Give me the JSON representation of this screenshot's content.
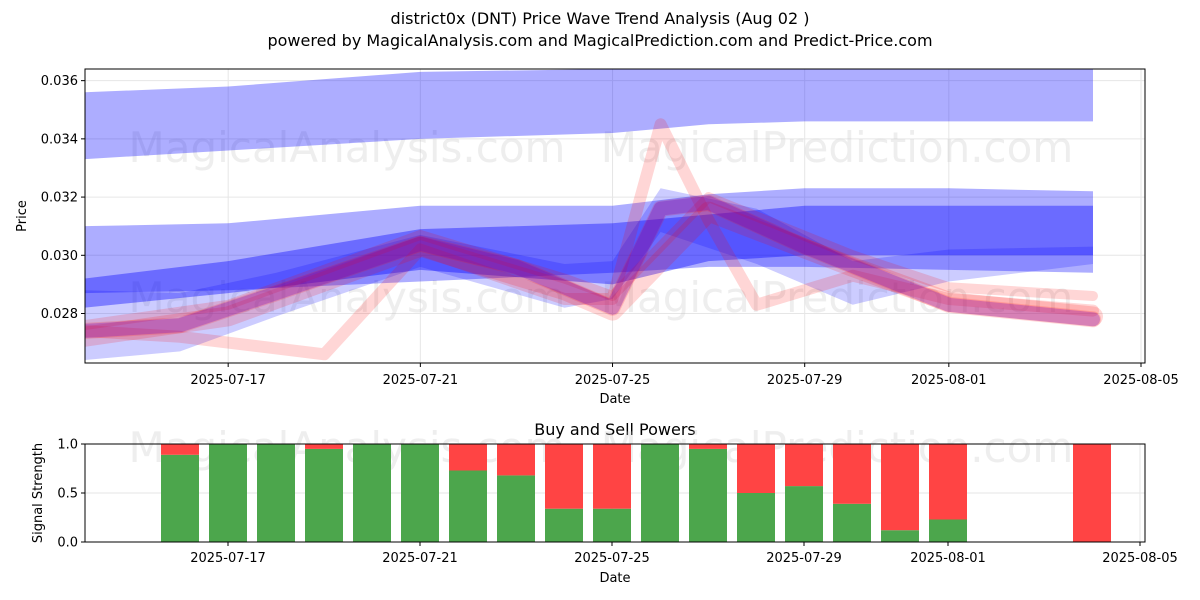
{
  "title": "district0x (DNT) Price Wave Trend Analysis (Aug 02 )",
  "subtitle": "powered by MagicalAnalysis.com and MagicalPrediction.com and Predict-Price.com",
  "watermarks": [
    "MagicalAnalysis.com",
    "MagicalPrediction.com"
  ],
  "colors": {
    "blue_band": "#0000ff",
    "red_band": "#ff0000",
    "purple_band": "#7000c0",
    "buy": "#4ca64c",
    "sell": "#ff4444"
  },
  "chart_data": [
    {
      "type": "area",
      "xlabel": "Date",
      "ylabel": "Price",
      "x_ticks": [
        "2025-07-17",
        "2025-07-21",
        "2025-07-25",
        "2025-07-29",
        "2025-08-01",
        "2025-08-05"
      ],
      "y_ticks": [
        "0.028",
        "0.030",
        "0.032",
        "0.034",
        "0.036"
      ],
      "xlim": [
        "2025-07-13",
        "2025-08-05"
      ],
      "ylim": [
        0.0263,
        0.0364
      ],
      "grid": true,
      "bands": [
        {
          "color": "blue",
          "x": [
            "2025-07-14",
            "2025-07-17",
            "2025-07-21",
            "2025-07-25",
            "2025-07-27",
            "2025-07-29",
            "2025-08-01",
            "2025-08-04"
          ],
          "low": [
            0.0333,
            0.0336,
            0.034,
            0.0342,
            0.0345,
            0.0346,
            0.0346,
            0.0346
          ],
          "high": [
            0.0356,
            0.0358,
            0.0363,
            0.0364,
            0.0364,
            0.0364,
            0.0364,
            0.0364
          ]
        },
        {
          "color": "blue",
          "x": [
            "2025-07-14",
            "2025-07-17",
            "2025-07-21",
            "2025-07-25",
            "2025-07-27",
            "2025-07-29",
            "2025-08-01",
            "2025-08-04"
          ],
          "low": [
            0.0287,
            0.0288,
            0.0291,
            0.0294,
            0.0296,
            0.0296,
            0.0295,
            0.0294
          ],
          "high": [
            0.031,
            0.0311,
            0.0317,
            0.0317,
            0.0321,
            0.0323,
            0.0323,
            0.0322
          ]
        },
        {
          "color": "blue",
          "x": [
            "2025-07-14",
            "2025-07-17",
            "2025-07-21",
            "2025-07-25",
            "2025-07-27",
            "2025-07-29",
            "2025-08-01",
            "2025-08-04"
          ],
          "low": [
            0.0282,
            0.0287,
            0.0295,
            0.029,
            0.0298,
            0.03,
            0.03,
            0.03
          ],
          "high": [
            0.0292,
            0.0298,
            0.0309,
            0.0311,
            0.0314,
            0.0317,
            0.0317,
            0.0317
          ]
        },
        {
          "color": "blue",
          "x": [
            "2025-07-14",
            "2025-07-16",
            "2025-07-18",
            "2025-07-21",
            "2025-07-24",
            "2025-07-25",
            "2025-07-26",
            "2025-07-28",
            "2025-07-30",
            "2025-08-01",
            "2025-08-04"
          ],
          "low": [
            0.0264,
            0.0267,
            0.0279,
            0.0296,
            0.0282,
            0.0285,
            0.0308,
            0.0297,
            0.0283,
            0.0291,
            0.0297
          ],
          "high": [
            0.0288,
            0.0287,
            0.0294,
            0.0307,
            0.0297,
            0.0298,
            0.0323,
            0.0316,
            0.0298,
            0.0302,
            0.0303
          ]
        }
      ],
      "red_lines": [
        {
          "x": [
            "2025-07-14",
            "2025-07-16",
            "2025-07-18",
            "2025-07-21",
            "2025-07-23",
            "2025-07-25",
            "2025-07-26",
            "2025-07-27",
            "2025-07-29",
            "2025-08-01",
            "2025-08-04"
          ],
          "y": [
            0.0274,
            0.0276,
            0.0287,
            0.0304,
            0.0296,
            0.0282,
            0.0316,
            0.0318,
            0.0303,
            0.0283,
            0.0278
          ]
        },
        {
          "x": [
            "2025-07-14",
            "2025-07-16",
            "2025-07-19",
            "2025-07-21",
            "2025-07-24",
            "2025-07-25",
            "2025-07-26",
            "2025-07-27",
            "2025-07-28",
            "2025-07-30",
            "2025-08-01",
            "2025-08-04"
          ],
          "y": [
            0.0274,
            0.0272,
            0.0266,
            0.0302,
            0.0285,
            0.0285,
            0.0345,
            0.0312,
            0.0283,
            0.0293,
            0.0285,
            0.0281
          ]
        },
        {
          "x": [
            "2025-07-14",
            "2025-07-17",
            "2025-07-21",
            "2025-07-24",
            "2025-07-25",
            "2025-07-27",
            "2025-07-30",
            "2025-08-01",
            "2025-08-04"
          ],
          "y": [
            0.0272,
            0.0279,
            0.0303,
            0.0288,
            0.0281,
            0.0315,
            0.0296,
            0.0284,
            0.0279
          ]
        },
        {
          "x": [
            "2025-07-14",
            "2025-07-17",
            "2025-07-21",
            "2025-07-24",
            "2025-07-25",
            "2025-07-27",
            "2025-07-30",
            "2025-08-01",
            "2025-08-04"
          ],
          "y": [
            0.0276,
            0.0283,
            0.0307,
            0.0292,
            0.0286,
            0.032,
            0.03,
            0.0289,
            0.0286
          ]
        }
      ]
    },
    {
      "type": "bar",
      "title": "Buy and Sell Powers",
      "xlabel": "Date",
      "ylabel": "Signal Strength",
      "x_ticks": [
        "2025-07-17",
        "2025-07-21",
        "2025-07-25",
        "2025-07-29",
        "2025-08-01",
        "2025-08-05"
      ],
      "y_ticks": [
        "0.0",
        "0.5",
        "1.0"
      ],
      "ylim": [
        0,
        1
      ],
      "categories": [
        "2025-07-16",
        "2025-07-17",
        "2025-07-18",
        "2025-07-19",
        "2025-07-20",
        "2025-07-21",
        "2025-07-22",
        "2025-07-23",
        "2025-07-24",
        "2025-07-25",
        "2025-07-26",
        "2025-07-27",
        "2025-07-28",
        "2025-07-29",
        "2025-07-30",
        "2025-07-31",
        "2025-08-01",
        "2025-08-04"
      ],
      "series": [
        {
          "name": "Buy",
          "values": [
            0.89,
            1.0,
            1.0,
            0.95,
            1.0,
            1.0,
            0.73,
            0.68,
            0.34,
            0.34,
            1.0,
            0.95,
            0.5,
            0.57,
            0.39,
            0.12,
            0.23,
            0.0
          ]
        },
        {
          "name": "Sell",
          "values": [
            0.11,
            0.0,
            0.0,
            0.05,
            0.0,
            0.0,
            0.27,
            0.32,
            0.66,
            0.66,
            0.0,
            0.05,
            0.5,
            0.43,
            0.61,
            0.88,
            0.77,
            1.0
          ]
        }
      ]
    }
  ]
}
